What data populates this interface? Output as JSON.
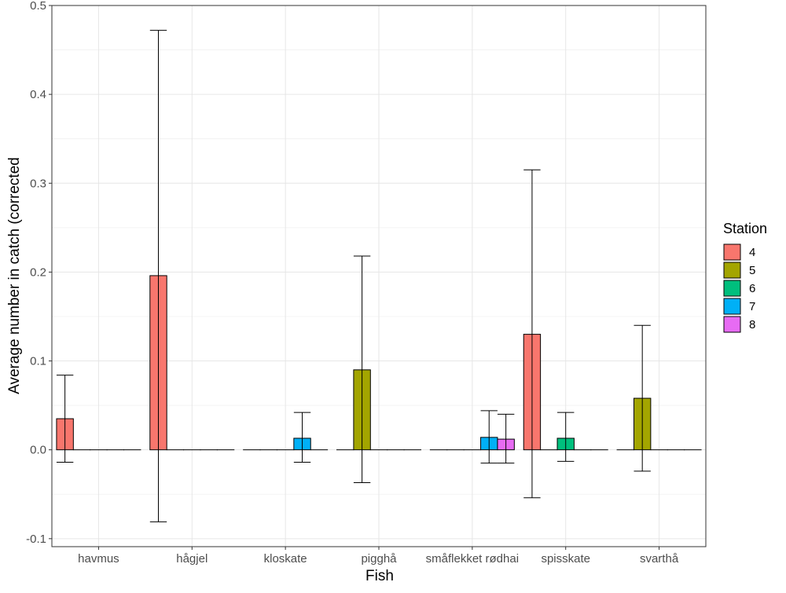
{
  "chart_data": {
    "type": "bar",
    "title": "",
    "xlabel": "Fish",
    "ylabel": "Average number in catch (corrected",
    "ylim": [
      -0.109,
      0.5
    ],
    "yticks": [
      -0.1,
      0.0,
      0.1,
      0.2,
      0.3,
      0.4,
      0.5
    ],
    "ytick_labels": [
      "-0.1",
      "0.0",
      "0.1",
      "0.2",
      "0.3",
      "0.4",
      "0.5"
    ],
    "grid": true,
    "legend": {
      "title": "Station",
      "position": "right"
    },
    "categories": [
      "havmus",
      "hågjel",
      "kloskate",
      "pigghå",
      "småflekket rødhai",
      "spisskate",
      "svarthå"
    ],
    "series": [
      {
        "name": "4",
        "color": "#F8766D",
        "values": [
          0.035,
          0.196,
          0,
          0,
          0,
          0.13,
          0
        ],
        "err_low": [
          -0.014,
          -0.081,
          null,
          null,
          null,
          -0.054,
          null
        ],
        "err_high": [
          0.084,
          0.472,
          null,
          null,
          null,
          0.315,
          null
        ]
      },
      {
        "name": "5",
        "color": "#A3A500",
        "values": [
          0,
          0,
          0,
          0.09,
          0,
          0,
          0.058
        ],
        "err_low": [
          null,
          null,
          null,
          -0.037,
          null,
          null,
          -0.024
        ],
        "err_high": [
          null,
          null,
          null,
          0.218,
          null,
          null,
          0.14
        ]
      },
      {
        "name": "6",
        "color": "#00BF7D",
        "values": [
          0,
          0,
          0,
          0,
          0,
          0.013,
          0
        ],
        "err_low": [
          null,
          null,
          null,
          null,
          null,
          -0.013,
          null
        ],
        "err_high": [
          null,
          null,
          null,
          null,
          null,
          0.042,
          null
        ]
      },
      {
        "name": "7",
        "color": "#00B0F6",
        "values": [
          0,
          0,
          0.013,
          0,
          0.014,
          0,
          0
        ],
        "err_low": [
          null,
          null,
          -0.014,
          null,
          -0.015,
          null,
          null
        ],
        "err_high": [
          null,
          null,
          0.042,
          null,
          0.044,
          null,
          null
        ]
      },
      {
        "name": "8",
        "color": "#E76BF3",
        "values": [
          0,
          0,
          0,
          0,
          0.012,
          0,
          0
        ],
        "err_low": [
          null,
          null,
          null,
          null,
          -0.015,
          null,
          null
        ],
        "err_high": [
          null,
          null,
          null,
          null,
          0.04,
          null,
          null
        ]
      }
    ]
  }
}
